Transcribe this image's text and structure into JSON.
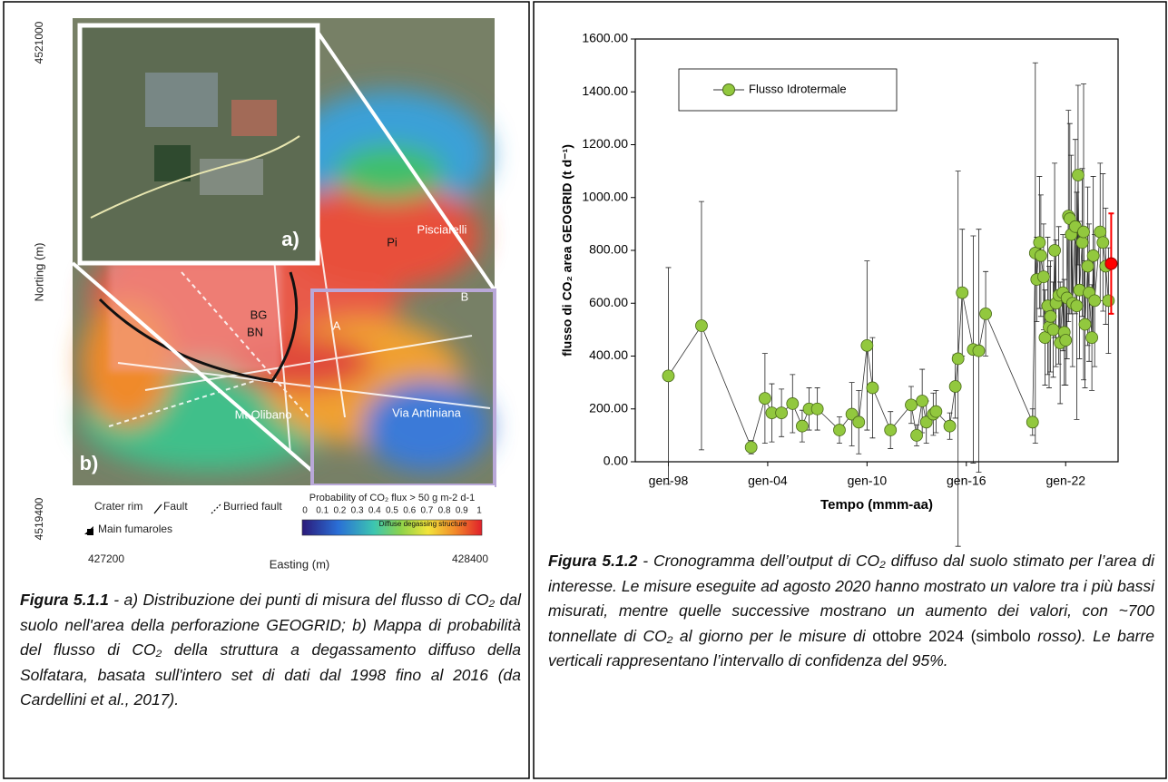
{
  "map": {
    "y_top_label": "4521000",
    "y_bottom_label": "4519400",
    "y_axis_title": "Norting (m)",
    "x_left_label": "427200",
    "x_right_label": "428400",
    "x_axis_title": "Easting (m)",
    "panel_a": "a)",
    "panel_b": "b)",
    "places": [
      "Pisciarelli",
      "Pi",
      "BG",
      "BN",
      "A",
      "B",
      "Mt.Olibano",
      "Via Antiniana"
    ],
    "legend": [
      "Crater rim",
      "Fault",
      "Burried fault",
      "Main fumaroles"
    ],
    "scale_title": "Probability of CO₂ flux > 50 g m-2 d-1",
    "scale_ticks": [
      0,
      0.1,
      0.2,
      0.3,
      0.4,
      0.5,
      0.6,
      0.7,
      0.8,
      0.9,
      1
    ],
    "scale_note": "Diffuse degassing structure"
  },
  "caption_left": {
    "label": "Figura 5.1.1",
    "text": " - a) Distribuzione dei punti di misura del flusso di CO₂ dal suolo nell'area della perforazione GEOGRID; b) Mappa di probabilità del flusso di CO₂ della struttura a degassamento diffuso della Solfatara, basata sull'intero set di dati dal 1998 fino al 2016 (da Cardellini et al., 2017)."
  },
  "caption_right": {
    "label": "Figura 5.1.2",
    "text": " - Cronogramma dell’output di CO₂ diffuso dal suolo stimato per l’area di interesse. Le misure eseguite ad agosto 2020 hanno mostrato un valore tra i più bassi misurati, mentre quelle successive mostrano un aumento dei valori, con ~700 tonnellate di CO₂ al giorno per le misure di ",
    "plain": "ottobre 2024 (simbolo",
    "tail": " rosso). Le barre verticali rappresentano l’intervallo di confidenza del 95%."
  },
  "chart_data": {
    "type": "line",
    "x_label": "Tempo (mmm-aa)",
    "y_label": "flusso di CO₂ area GEOGRID (t d⁻¹)",
    "xlim": [
      "1996-01",
      "2025-03"
    ],
    "xticks": [
      {
        "value": "1998-01",
        "label": "gen-98"
      },
      {
        "value": "2004-01",
        "label": "gen-04"
      },
      {
        "value": "2010-01",
        "label": "gen-10"
      },
      {
        "value": "2016-01",
        "label": "gen-16"
      },
      {
        "value": "2022-01",
        "label": "gen-22"
      }
    ],
    "ylim": [
      0,
      1600
    ],
    "yticks": [
      {
        "value": 0,
        "label": "0.00"
      },
      {
        "value": 200,
        "label": "200.00"
      },
      {
        "value": 400,
        "label": "400.00"
      },
      {
        "value": 600,
        "label": "600.00"
      },
      {
        "value": 800,
        "label": "800.00"
      },
      {
        "value": 1000,
        "label": "1000.00"
      },
      {
        "value": 1200,
        "label": "1200.00"
      },
      {
        "value": 1400,
        "label": "1400.00"
      },
      {
        "value": 1600,
        "label": "1600.00"
      }
    ],
    "x": [
      "1998-01",
      "2000-01",
      "2003-01",
      "2003-11",
      "2004-04",
      "2004-11",
      "2005-07",
      "2006-02",
      "2006-07",
      "2007-01",
      "2008-05",
      "2009-02",
      "2009-07",
      "2010-01",
      "2010-05",
      "2011-06",
      "2012-09",
      "2013-01",
      "2013-05",
      "2013-08",
      "2014-01",
      "2014-03",
      "2015-01",
      "2015-05",
      "2015-07",
      "2015-10",
      "2016-06",
      "2016-10",
      "2017-03",
      "2020-01",
      "2020-03",
      "2020-04",
      "2020-06",
      "2020-07",
      "2020-09",
      "2020-10",
      "2020-12",
      "2021-01",
      "2021-02",
      "2021-04",
      "2021-05",
      "2021-06",
      "2021-08",
      "2021-09",
      "2021-11",
      "2021-12",
      "2022-01",
      "2022-02",
      "2022-03",
      "2022-04",
      "2022-05",
      "2022-06",
      "2022-08",
      "2022-09",
      "2022-10",
      "2022-11",
      "2023-01",
      "2023-02",
      "2023-03",
      "2023-05",
      "2023-06",
      "2023-08",
      "2023-09",
      "2023-10",
      "2024-02",
      "2024-04",
      "2024-06",
      "2024-08"
    ],
    "series": [
      {
        "name": "Flusso Idrotermale",
        "color": "#92c83e",
        "values": [
          325,
          515,
          55,
          240,
          185,
          185,
          220,
          135,
          200,
          200,
          120,
          180,
          150,
          440,
          280,
          120,
          215,
          100,
          230,
          150,
          180,
          190,
          135,
          285,
          390,
          640,
          425,
          420,
          560,
          150,
          790,
          690,
          830,
          780,
          700,
          470,
          590,
          510,
          550,
          500,
          800,
          600,
          630,
          450,
          640,
          490,
          460,
          620,
          930,
          920,
          860,
          600,
          890,
          590,
          1085,
          650,
          830,
          870,
          520,
          740,
          640,
          470,
          780,
          610,
          870,
          830,
          740,
          610
        ],
        "errors": [
          410,
          470,
          25,
          170,
          110,
          90,
          110,
          60,
          80,
          80,
          50,
          120,
          120,
          320,
          190,
          70,
          70,
          40,
          120,
          80,
          80,
          80,
          50,
          120,
          710,
          240,
          430,
          460,
          160,
          50,
          720,
          160,
          250,
          230,
          200,
          180,
          260,
          230,
          210,
          180,
          330,
          240,
          260,
          230,
          220,
          200,
          170,
          230,
          400,
          360,
          300,
          240,
          330,
          430,
          340,
          260,
          280,
          560,
          240,
          300,
          260,
          200,
          300,
          250,
          260,
          260,
          220,
          200
        ]
      }
    ],
    "extra_points": [
      {
        "x": "2024-10",
        "value": 750,
        "error": 190,
        "color": "#ff0000"
      }
    ],
    "legend_position": "upper-left"
  }
}
